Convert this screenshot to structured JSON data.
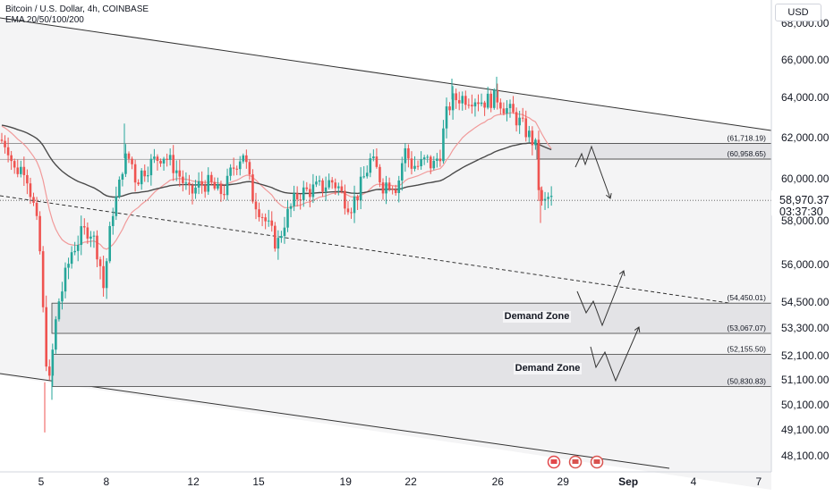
{
  "header": {
    "symbol_line": "Bitcoin / U.S. Dollar, 4h, COINBASE",
    "indicator_line": "EMA 20/50/100/200"
  },
  "currency_button": "USD",
  "price_tag": {
    "price": "58,970.37",
    "countdown": "03:37:30"
  },
  "colors": {
    "up": "#26a69a",
    "down": "#ef5350",
    "ema_red": "#f19a9a",
    "ema_dark": "#4a4a4a",
    "zone_fill": "#e3e3e6"
  },
  "chart_data": {
    "type": "candlestick",
    "title": "Bitcoin / U.S. Dollar, 4h, COINBASE",
    "ylabel": "",
    "xlabel": "",
    "y_tick_labels": [
      "68,000.00",
      "66,000.00",
      "64,000.00",
      "62,000.00",
      "60,000.00",
      "58,000.00",
      "56,000.00",
      "54,500.00",
      "53,300.00",
      "52,100.00",
      "51,100.00",
      "50,100.00",
      "49,100.00",
      "48,100.00"
    ],
    "y_tick_values": [
      68000,
      66000,
      64000,
      62000,
      60000,
      58000,
      56000,
      54500,
      53300,
      52100,
      51100,
      50100,
      49100,
      48100
    ],
    "x_tick_labels": [
      "5",
      "8",
      "12",
      "15",
      "19",
      "22",
      "26",
      "29",
      "Sep",
      "4",
      "7"
    ],
    "x_tick_days": [
      5,
      8,
      12,
      15,
      19,
      22,
      26,
      29,
      32,
      35,
      38
    ],
    "x_range_days": [
      3.5,
      38.5
    ],
    "zones": [
      {
        "label": "",
        "top": 61718.19,
        "bottom": 60958.65,
        "top_label": "(61,718.19)",
        "bottom_label": "(60,958.65)"
      },
      {
        "label": "Demand Zone",
        "top": 54450.01,
        "bottom": 53067.07,
        "top_label": "(54,450.01)",
        "bottom_label": "(53,067.07)"
      },
      {
        "label": "Demand Zone",
        "top": 52155.5,
        "bottom": 50830.83,
        "top_label": "(52,155.50)",
        "bottom_label": "(50,830.83)"
      }
    ],
    "current_price": 58970.37
  }
}
